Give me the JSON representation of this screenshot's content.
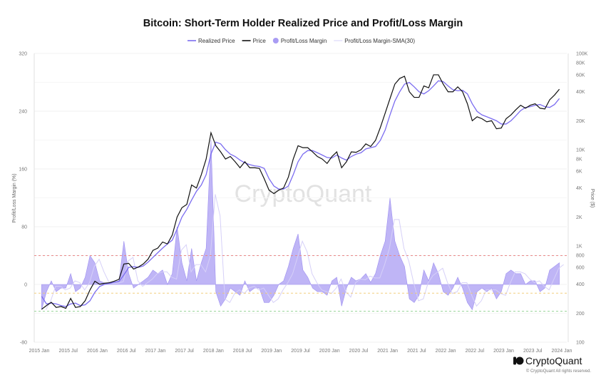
{
  "chart_data": {
    "type": "line",
    "title": "Bitcoin: Short-Term Holder Realized Price and Profit/Loss Margin",
    "legend": [
      {
        "name": "Realized Price",
        "color": "#7b6cf0",
        "marker": "line"
      },
      {
        "name": "Price",
        "color": "#111111",
        "marker": "line"
      },
      {
        "name": "Profit/Loss Margin",
        "color": "#a99cf3",
        "marker": "dot"
      },
      {
        "name": "Profit/Loss Margin-SMA(30)",
        "color": "#d6d0f8",
        "marker": "line"
      }
    ],
    "legend_placement": "top-center",
    "left_axis": {
      "label": "Profit/Loss Margin (%)",
      "ylim": [
        -80,
        320
      ],
      "ticks": [
        "320",
        "240",
        "160",
        "80",
        "0",
        "-80"
      ]
    },
    "right_axis": {
      "label": "Price ($)",
      "scale": "log",
      "ylim": [
        100,
        100000
      ],
      "ticks": [
        [
          "100K",
          100000
        ],
        [
          "80K",
          80000
        ],
        [
          "60K",
          60000
        ],
        [
          "40K",
          40000
        ],
        [
          "20K",
          20000
        ],
        [
          "10K",
          10000
        ],
        [
          "8K",
          8000
        ],
        [
          "6K",
          6000
        ],
        [
          "4K",
          4000
        ],
        [
          "2K",
          2000
        ],
        [
          "1K",
          1000
        ],
        [
          "800",
          800
        ],
        [
          "600",
          600
        ],
        [
          "400",
          400
        ],
        [
          "200",
          200
        ],
        [
          "100",
          100
        ]
      ]
    },
    "x_ticks": [
      "2015 Jan",
      "2015 Jul",
      "2016 Jan",
      "2016 Jul",
      "2017 Jan",
      "2017 Jul",
      "2018 Jan",
      "2018 Jul",
      "2019 Jan",
      "2019 Jul",
      "2020 Jan",
      "2020 Jul",
      "2021 Jan",
      "2021 Jul",
      "2022 Jan",
      "2022 Jul",
      "2023 Jan",
      "2023 Jul",
      "2024 Jan"
    ],
    "x_start": "2015-01",
    "x_interval": "monthly",
    "grid": true,
    "reference_lines": [
      {
        "value": 40,
        "color": "#e88a8a",
        "style": "dashed"
      },
      {
        "value": -12,
        "color": "#f0c86a",
        "style": "dashed"
      },
      {
        "value": -37,
        "color": "#8fd08f",
        "style": "dashed"
      }
    ],
    "series": {
      "price": [
        220,
        240,
        260,
        230,
        235,
        225,
        285,
        230,
        235,
        270,
        350,
        430,
        400,
        410,
        415,
        430,
        450,
        650,
        660,
        575,
        605,
        650,
        730,
        900,
        950,
        1100,
        1050,
        1300,
        2000,
        2500,
        2700,
        4300,
        4000,
        5500,
        8000,
        15000,
        11000,
        9500,
        8000,
        8500,
        7500,
        6500,
        7500,
        6500,
        6500,
        6400,
        5000,
        3800,
        3500,
        3800,
        4000,
        5200,
        8000,
        11000,
        10500,
        10500,
        9500,
        8500,
        8000,
        7200,
        8500,
        9500,
        6500,
        7500,
        9500,
        9400,
        10000,
        11500,
        10800,
        12500,
        17000,
        24000,
        34000,
        48000,
        55000,
        58000,
        40000,
        35000,
        35000,
        46000,
        44000,
        60000,
        60000,
        48000,
        40000,
        40000,
        45000,
        40000,
        30000,
        20000,
        22000,
        21000,
        19500,
        20000,
        16500,
        16800,
        21000,
        23000,
        26000,
        29000,
        27000,
        29000,
        30000,
        27000,
        26500,
        33000,
        37000,
        42500
      ],
      "realized_price": [
        300,
        250,
        255,
        250,
        240,
        235,
        250,
        255,
        240,
        245,
        270,
        330,
        380,
        400,
        410,
        420,
        430,
        500,
        600,
        610,
        600,
        620,
        680,
        760,
        850,
        950,
        1050,
        1150,
        1500,
        2000,
        2400,
        3000,
        3700,
        4300,
        5500,
        9000,
        12000,
        11500,
        10000,
        9000,
        8500,
        7800,
        7300,
        7000,
        6800,
        6700,
        6400,
        5000,
        4200,
        3900,
        3900,
        4200,
        5500,
        7500,
        9000,
        9800,
        9800,
        9300,
        8800,
        8300,
        8200,
        8800,
        8200,
        7800,
        8500,
        9000,
        9300,
        10200,
        10500,
        10800,
        12500,
        16000,
        23000,
        32000,
        40000,
        48000,
        50000,
        45000,
        40000,
        38000,
        41000,
        46000,
        52000,
        51000,
        46000,
        42000,
        41000,
        41500,
        38000,
        30000,
        25000,
        23000,
        22000,
        21000,
        20000,
        18500,
        18500,
        20000,
        22500,
        25500,
        27500,
        28000,
        29000,
        29500,
        28000,
        27500,
        29500,
        34000
      ],
      "profit_loss_margin": [
        -35,
        -10,
        5,
        -10,
        -5,
        -5,
        15,
        -10,
        -5,
        10,
        40,
        30,
        5,
        2,
        1,
        3,
        5,
        60,
        15,
        -5,
        0,
        5,
        10,
        20,
        15,
        20,
        0,
        15,
        80,
        30,
        5,
        50,
        5,
        30,
        50,
        200,
        -10,
        -30,
        -20,
        -5,
        -10,
        -15,
        5,
        -10,
        -5,
        -5,
        -25,
        -25,
        -15,
        0,
        5,
        25,
        50,
        70,
        20,
        10,
        -5,
        -10,
        -10,
        -15,
        5,
        10,
        -30,
        -5,
        10,
        5,
        8,
        15,
        3,
        15,
        40,
        60,
        120,
        60,
        40,
        25,
        -20,
        -25,
        -15,
        20,
        5,
        30,
        15,
        -10,
        -15,
        -5,
        10,
        -5,
        -25,
        -35,
        -10,
        -5,
        -10,
        -5,
        -20,
        -10,
        15,
        20,
        15,
        15,
        0,
        5,
        5,
        -10,
        -5,
        20,
        25,
        30
      ]
    }
  },
  "watermark": "CryptoQuant",
  "footer": {
    "brand": "CryptoQuant",
    "copyright": "© CryptoQuant All rights reserved."
  }
}
